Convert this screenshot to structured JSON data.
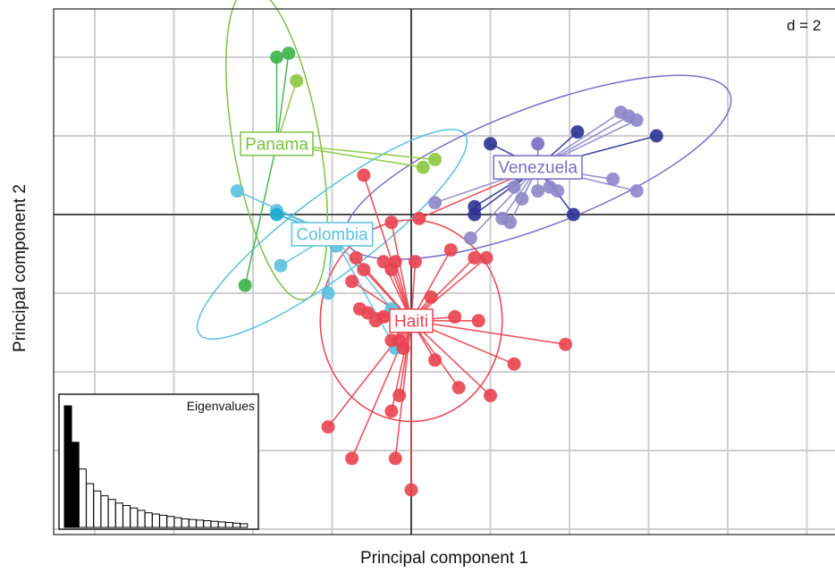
{
  "chart_data": {
    "type": "scatter",
    "title": "",
    "scale_label": "d = 2",
    "xlabel": "Principal component 1",
    "ylabel": "Principal component 2",
    "xlim": [
      -4.5,
      5.4
    ],
    "ylim": [
      -4.0,
      2.7
    ],
    "grid": true,
    "grid_step": 1,
    "series": [
      {
        "name": "Panama",
        "color": "#7cc242",
        "centroid": [
          -1.7,
          0.9
        ],
        "ellipse": {
          "rx": 2.0,
          "ry": 0.55,
          "angle_deg": 80
        },
        "points": [
          [
            -1.7,
            2.0
          ],
          [
            -1.55,
            2.05
          ],
          [
            -1.45,
            1.7
          ],
          [
            0.15,
            0.6
          ],
          [
            0.3,
            0.7
          ],
          [
            -2.1,
            -0.9
          ]
        ],
        "point_colors": [
          "#3cb44b",
          "#3cb44b",
          "#8cc63f",
          "#8cc63f",
          "#8cc63f",
          "#3cb44b"
        ]
      },
      {
        "name": "Colombia",
        "color": "#5bc0de",
        "centroid": [
          -1.0,
          -0.25
        ],
        "ellipse": {
          "rx": 2.1,
          "ry": 0.5,
          "angle_deg": -37
        },
        "points": [
          [
            -2.2,
            0.3
          ],
          [
            -1.7,
            0.05
          ],
          [
            -1.7,
            0.0
          ],
          [
            -1.65,
            -0.65
          ],
          [
            -0.95,
            -0.4
          ],
          [
            -1.05,
            -1.0
          ],
          [
            -0.25,
            -1.2
          ],
          [
            -0.2,
            -1.7
          ]
        ],
        "point_colors": [
          "#5bc0de",
          "#5bc0de",
          "#1ba8d1",
          "#5bc0de",
          "#5bc0de",
          "#5bc0de",
          "#5bc0de",
          "#5bc0de"
        ]
      },
      {
        "name": "Venezuela",
        "color": "#7b6cc6",
        "centroid": [
          1.6,
          0.6
        ],
        "ellipse": {
          "rx": 2.6,
          "ry": 0.75,
          "angle_deg": -21
        },
        "points": [
          [
            1.0,
            0.9
          ],
          [
            1.6,
            0.9
          ],
          [
            2.1,
            1.05
          ],
          [
            2.65,
            1.3
          ],
          [
            2.75,
            1.25
          ],
          [
            2.85,
            1.2
          ],
          [
            3.1,
            1.0
          ],
          [
            2.85,
            0.3
          ],
          [
            2.55,
            0.45
          ],
          [
            2.05,
            0.0
          ],
          [
            1.3,
            0.35
          ],
          [
            1.4,
            0.2
          ],
          [
            1.6,
            0.3
          ],
          [
            1.75,
            0.35
          ],
          [
            1.85,
            0.3
          ],
          [
            0.8,
            0.1
          ],
          [
            0.8,
            0.0
          ],
          [
            1.15,
            -0.05
          ],
          [
            1.25,
            -0.1
          ],
          [
            0.75,
            -0.3
          ],
          [
            0.3,
            0.15
          ],
          [
            0.1,
            -0.05
          ]
        ],
        "point_colors": [
          "#2e3192",
          "#7b6cc6",
          "#2e3192",
          "#8f86c9",
          "#8f86c9",
          "#8f86c9",
          "#2e3192",
          "#8f86c9",
          "#8f86c9",
          "#2e3192",
          "#8f86c9",
          "#8f86c9",
          "#8f86c9",
          "#8f86c9",
          "#8f86c9",
          "#2e3192",
          "#2e3192",
          "#8f86c9",
          "#8f86c9",
          "#8f86c9",
          "#8f86c9",
          "#e8434f"
        ]
      },
      {
        "name": "Haiti",
        "color": "#e8434f",
        "centroid": [
          0.0,
          -1.35
        ],
        "ellipse": {
          "rx": 1.15,
          "ry": 1.28,
          "angle_deg": 0
        },
        "points": [
          [
            -0.6,
            0.5
          ],
          [
            -0.25,
            -0.1
          ],
          [
            -0.6,
            -0.7
          ],
          [
            -0.7,
            -0.55
          ],
          [
            -0.35,
            -0.6
          ],
          [
            -0.25,
            -0.7
          ],
          [
            -0.2,
            -0.6
          ],
          [
            0.05,
            -0.6
          ],
          [
            -0.75,
            -0.85
          ],
          [
            -0.65,
            -1.2
          ],
          [
            -0.55,
            -1.25
          ],
          [
            -0.35,
            -1.3
          ],
          [
            -0.25,
            -1.6
          ],
          [
            -0.15,
            -1.6
          ],
          [
            -0.1,
            -1.7
          ],
          [
            0.25,
            -1.05
          ],
          [
            0.5,
            -0.45
          ],
          [
            0.8,
            -0.55
          ],
          [
            0.95,
            -0.55
          ],
          [
            0.55,
            -1.3
          ],
          [
            0.85,
            -1.35
          ],
          [
            0.3,
            -1.85
          ],
          [
            0.6,
            -2.2
          ],
          [
            1.0,
            -2.3
          ],
          [
            1.3,
            -1.9
          ],
          [
            1.95,
            -1.65
          ],
          [
            -0.15,
            -2.3
          ],
          [
            -0.25,
            -2.5
          ],
          [
            -1.05,
            -2.7
          ],
          [
            -0.75,
            -3.1
          ],
          [
            -0.2,
            -3.1
          ],
          [
            0.0,
            -3.5
          ],
          [
            -0.45,
            -1.35
          ],
          [
            0.15,
            -1.4
          ]
        ],
        "point_colors": [
          "#e8434f",
          "#e8434f",
          "#e8434f",
          "#e8434f",
          "#e8434f",
          "#e8434f",
          "#e8434f",
          "#e8434f",
          "#e8434f",
          "#e8434f",
          "#e8434f",
          "#e8434f",
          "#e8434f",
          "#e8434f",
          "#e8434f",
          "#e8434f",
          "#e8434f",
          "#e8434f",
          "#e8434f",
          "#e8434f",
          "#e8434f",
          "#e8434f",
          "#e8434f",
          "#e8434f",
          "#e8434f",
          "#e8434f",
          "#e8434f",
          "#e8434f",
          "#e8434f",
          "#e8434f",
          "#e8434f",
          "#e8434f",
          "#e8434f",
          "#e8434f"
        ]
      }
    ],
    "inset": {
      "type": "bar",
      "title": "Eigenvalues",
      "values": [
        1.0,
        0.7,
        0.48,
        0.36,
        0.3,
        0.26,
        0.23,
        0.2,
        0.18,
        0.16,
        0.14,
        0.12,
        0.11,
        0.1,
        0.09,
        0.08,
        0.07,
        0.065,
        0.06,
        0.055,
        0.05,
        0.045,
        0.04,
        0.035,
        0.03
      ],
      "highlighted": [
        0,
        1
      ]
    }
  }
}
